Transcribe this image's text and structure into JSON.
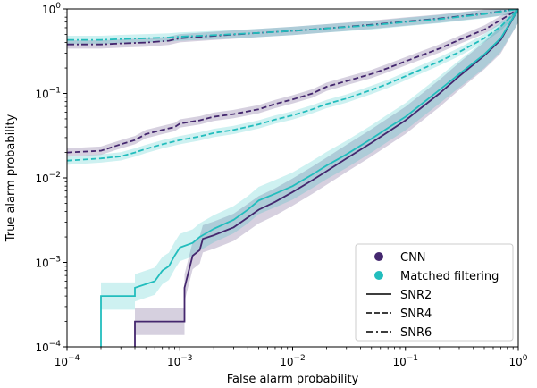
{
  "chart_data": {
    "type": "line",
    "xlabel": "False alarm probability",
    "ylabel": "True alarm probability",
    "xscale": "log",
    "yscale": "log",
    "xlim": [
      0.0001,
      1
    ],
    "ylim": [
      0.0001,
      1
    ],
    "x_ticks": [
      {
        "value": 0.0001,
        "base": "10",
        "exp": "−4"
      },
      {
        "value": 0.001,
        "base": "10",
        "exp": "−3"
      },
      {
        "value": 0.01,
        "base": "10",
        "exp": "−2"
      },
      {
        "value": 0.1,
        "base": "10",
        "exp": "−1"
      },
      {
        "value": 1,
        "base": "10",
        "exp": "0"
      }
    ],
    "y_ticks": [
      {
        "value": 0.0001,
        "base": "10",
        "exp": "−4"
      },
      {
        "value": 0.001,
        "base": "10",
        "exp": "−3"
      },
      {
        "value": 0.01,
        "base": "10",
        "exp": "−2"
      },
      {
        "value": 0.1,
        "base": "10",
        "exp": "−1"
      },
      {
        "value": 1,
        "base": "10",
        "exp": "0"
      }
    ],
    "grid": false,
    "legend_position": "bottom-right",
    "legend": {
      "methods": [
        {
          "label": "CNN",
          "color": "#44276e"
        },
        {
          "label": "Matched filtering",
          "color": "#22bdbd"
        }
      ],
      "styles": [
        {
          "label": "SNR2",
          "dash": "solid"
        },
        {
          "label": "SNR4",
          "dash": "dashed"
        },
        {
          "label": "SNR6",
          "dash": "dashdot"
        }
      ]
    },
    "series": [
      {
        "method": "CNN",
        "snr": "SNR6",
        "color": "#44276e",
        "dash": "dashdot",
        "x": [
          0.0001,
          0.0002,
          0.0003,
          0.0005,
          0.0008,
          0.001,
          0.002,
          0.005,
          0.01,
          0.02,
          0.05,
          0.1,
          0.2,
          0.5,
          1
        ],
        "y": [
          0.38,
          0.38,
          0.39,
          0.4,
          0.42,
          0.45,
          0.48,
          0.52,
          0.55,
          0.59,
          0.65,
          0.71,
          0.77,
          0.88,
          1
        ]
      },
      {
        "method": "Matched filtering",
        "snr": "SNR6",
        "color": "#22bdbd",
        "dash": "dashdot",
        "x": [
          0.0001,
          0.0002,
          0.0003,
          0.0005,
          0.0008,
          0.001,
          0.002,
          0.005,
          0.01,
          0.02,
          0.05,
          0.1,
          0.2,
          0.5,
          1
        ],
        "y": [
          0.43,
          0.43,
          0.44,
          0.45,
          0.46,
          0.47,
          0.49,
          0.52,
          0.55,
          0.59,
          0.64,
          0.7,
          0.76,
          0.87,
          1
        ]
      },
      {
        "method": "CNN",
        "snr": "SNR4",
        "color": "#44276e",
        "dash": "dashed",
        "x": [
          0.0001,
          0.0002,
          0.0003,
          0.0004,
          0.0005,
          0.0007,
          0.0009,
          0.001,
          0.0015,
          0.002,
          0.003,
          0.005,
          0.007,
          0.01,
          0.015,
          0.02,
          0.03,
          0.05,
          0.07,
          0.1,
          0.2,
          0.3,
          0.5,
          0.7,
          1
        ],
        "y": [
          0.02,
          0.021,
          0.025,
          0.028,
          0.033,
          0.037,
          0.04,
          0.044,
          0.048,
          0.053,
          0.057,
          0.065,
          0.075,
          0.085,
          0.1,
          0.12,
          0.14,
          0.17,
          0.2,
          0.24,
          0.34,
          0.43,
          0.57,
          0.74,
          1
        ]
      },
      {
        "method": "Matched filtering",
        "snr": "SNR4",
        "color": "#22bdbd",
        "dash": "dashed",
        "x": [
          0.0001,
          0.0002,
          0.0003,
          0.0004,
          0.0005,
          0.0007,
          0.001,
          0.0015,
          0.002,
          0.003,
          0.005,
          0.007,
          0.01,
          0.015,
          0.02,
          0.03,
          0.05,
          0.07,
          0.1,
          0.2,
          0.3,
          0.5,
          0.7,
          1
        ],
        "y": [
          0.016,
          0.017,
          0.018,
          0.02,
          0.022,
          0.025,
          0.028,
          0.031,
          0.034,
          0.037,
          0.043,
          0.049,
          0.055,
          0.065,
          0.075,
          0.087,
          0.11,
          0.13,
          0.16,
          0.24,
          0.31,
          0.45,
          0.62,
          1
        ]
      },
      {
        "method": "CNN",
        "snr": "SNR2",
        "color": "#44276e",
        "dash": "solid",
        "x": [
          0.0004,
          0.0004,
          0.0011,
          0.0011,
          0.0013,
          0.0015,
          0.0016,
          0.002,
          0.003,
          0.004,
          0.005,
          0.007,
          0.01,
          0.015,
          0.02,
          0.03,
          0.05,
          0.07,
          0.1,
          0.2,
          0.3,
          0.5,
          0.7,
          1
        ],
        "y": [
          0.0001,
          0.0002,
          0.0002,
          0.0005,
          0.0012,
          0.0014,
          0.0019,
          0.0021,
          0.0026,
          0.0034,
          0.0042,
          0.0052,
          0.0068,
          0.0094,
          0.012,
          0.017,
          0.026,
          0.035,
          0.048,
          0.1,
          0.16,
          0.28,
          0.43,
          1
        ]
      },
      {
        "method": "Matched filtering",
        "snr": "SNR2",
        "color": "#22bdbd",
        "dash": "solid",
        "x": [
          0.0002,
          0.0002,
          0.0004,
          0.0004,
          0.0006,
          0.0007,
          0.0008,
          0.0009,
          0.001,
          0.0013,
          0.0015,
          0.002,
          0.003,
          0.004,
          0.005,
          0.007,
          0.01,
          0.015,
          0.02,
          0.03,
          0.05,
          0.07,
          0.1,
          0.2,
          0.3,
          0.5,
          0.7,
          1
        ],
        "y": [
          0.0001,
          0.0004,
          0.0004,
          0.0005,
          0.0006,
          0.0008,
          0.0009,
          0.0012,
          0.0015,
          0.0017,
          0.002,
          0.0025,
          0.0032,
          0.0042,
          0.0054,
          0.0065,
          0.008,
          0.011,
          0.014,
          0.019,
          0.029,
          0.039,
          0.053,
          0.11,
          0.17,
          0.29,
          0.45,
          1
        ]
      }
    ]
  }
}
